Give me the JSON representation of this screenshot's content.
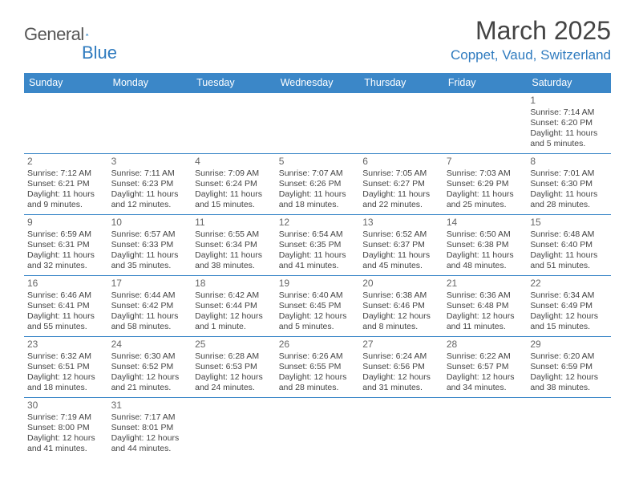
{
  "brand": {
    "name1": "General",
    "name2": "Blue"
  },
  "title": "March 2025",
  "location": "Coppet, Vaud, Switzerland",
  "colors": {
    "accent": "#3b87c8",
    "text": "#444"
  },
  "weekdays": [
    "Sunday",
    "Monday",
    "Tuesday",
    "Wednesday",
    "Thursday",
    "Friday",
    "Saturday"
  ],
  "firstDayIndex": 6,
  "daysInMonth": 31,
  "days": {
    "1": {
      "sunrise": "7:14 AM",
      "sunset": "6:20 PM",
      "daylight": "11 hours and 5 minutes."
    },
    "2": {
      "sunrise": "7:12 AM",
      "sunset": "6:21 PM",
      "daylight": "11 hours and 9 minutes."
    },
    "3": {
      "sunrise": "7:11 AM",
      "sunset": "6:23 PM",
      "daylight": "11 hours and 12 minutes."
    },
    "4": {
      "sunrise": "7:09 AM",
      "sunset": "6:24 PM",
      "daylight": "11 hours and 15 minutes."
    },
    "5": {
      "sunrise": "7:07 AM",
      "sunset": "6:26 PM",
      "daylight": "11 hours and 18 minutes."
    },
    "6": {
      "sunrise": "7:05 AM",
      "sunset": "6:27 PM",
      "daylight": "11 hours and 22 minutes."
    },
    "7": {
      "sunrise": "7:03 AM",
      "sunset": "6:29 PM",
      "daylight": "11 hours and 25 minutes."
    },
    "8": {
      "sunrise": "7:01 AM",
      "sunset": "6:30 PM",
      "daylight": "11 hours and 28 minutes."
    },
    "9": {
      "sunrise": "6:59 AM",
      "sunset": "6:31 PM",
      "daylight": "11 hours and 32 minutes."
    },
    "10": {
      "sunrise": "6:57 AM",
      "sunset": "6:33 PM",
      "daylight": "11 hours and 35 minutes."
    },
    "11": {
      "sunrise": "6:55 AM",
      "sunset": "6:34 PM",
      "daylight": "11 hours and 38 minutes."
    },
    "12": {
      "sunrise": "6:54 AM",
      "sunset": "6:35 PM",
      "daylight": "11 hours and 41 minutes."
    },
    "13": {
      "sunrise": "6:52 AM",
      "sunset": "6:37 PM",
      "daylight": "11 hours and 45 minutes."
    },
    "14": {
      "sunrise": "6:50 AM",
      "sunset": "6:38 PM",
      "daylight": "11 hours and 48 minutes."
    },
    "15": {
      "sunrise": "6:48 AM",
      "sunset": "6:40 PM",
      "daylight": "11 hours and 51 minutes."
    },
    "16": {
      "sunrise": "6:46 AM",
      "sunset": "6:41 PM",
      "daylight": "11 hours and 55 minutes."
    },
    "17": {
      "sunrise": "6:44 AM",
      "sunset": "6:42 PM",
      "daylight": "11 hours and 58 minutes."
    },
    "18": {
      "sunrise": "6:42 AM",
      "sunset": "6:44 PM",
      "daylight": "12 hours and 1 minute."
    },
    "19": {
      "sunrise": "6:40 AM",
      "sunset": "6:45 PM",
      "daylight": "12 hours and 5 minutes."
    },
    "20": {
      "sunrise": "6:38 AM",
      "sunset": "6:46 PM",
      "daylight": "12 hours and 8 minutes."
    },
    "21": {
      "sunrise": "6:36 AM",
      "sunset": "6:48 PM",
      "daylight": "12 hours and 11 minutes."
    },
    "22": {
      "sunrise": "6:34 AM",
      "sunset": "6:49 PM",
      "daylight": "12 hours and 15 minutes."
    },
    "23": {
      "sunrise": "6:32 AM",
      "sunset": "6:51 PM",
      "daylight": "12 hours and 18 minutes."
    },
    "24": {
      "sunrise": "6:30 AM",
      "sunset": "6:52 PM",
      "daylight": "12 hours and 21 minutes."
    },
    "25": {
      "sunrise": "6:28 AM",
      "sunset": "6:53 PM",
      "daylight": "12 hours and 24 minutes."
    },
    "26": {
      "sunrise": "6:26 AM",
      "sunset": "6:55 PM",
      "daylight": "12 hours and 28 minutes."
    },
    "27": {
      "sunrise": "6:24 AM",
      "sunset": "6:56 PM",
      "daylight": "12 hours and 31 minutes."
    },
    "28": {
      "sunrise": "6:22 AM",
      "sunset": "6:57 PM",
      "daylight": "12 hours and 34 minutes."
    },
    "29": {
      "sunrise": "6:20 AM",
      "sunset": "6:59 PM",
      "daylight": "12 hours and 38 minutes."
    },
    "30": {
      "sunrise": "7:19 AM",
      "sunset": "8:00 PM",
      "daylight": "12 hours and 41 minutes."
    },
    "31": {
      "sunrise": "7:17 AM",
      "sunset": "8:01 PM",
      "daylight": "12 hours and 44 minutes."
    }
  },
  "labels": {
    "sunrise": "Sunrise: ",
    "sunset": "Sunset: ",
    "daylight": "Daylight: "
  }
}
